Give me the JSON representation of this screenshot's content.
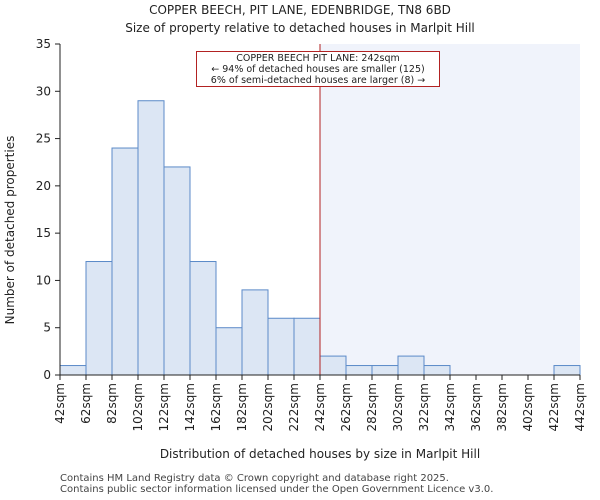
{
  "title_line1": "COPPER BEECH, PIT LANE, EDENBRIDGE, TN8 6BD",
  "title_line2": "Size of property relative to detached houses in Marlpit Hill",
  "footer_line1": "Contains HM Land Registry data © Crown copyright and database right 2025.",
  "footer_line2": "Contains public sector information licensed under the Open Government Licence v3.0.",
  "annotation": {
    "line1": "COPPER BEECH PIT LANE: 242sqm",
    "line2": "← 94% of detached houses are smaller (125)",
    "line3": "6% of semi-detached houses are larger (8) →"
  },
  "colors": {
    "bar_fill": "#dce6f4",
    "bar_stroke": "#5b8ac8",
    "highlight_region": "#f0f3fb",
    "marker_line": "#b22222"
  },
  "chart_data": {
    "type": "bar",
    "xlabel": "Distribution of detached houses by size in Marlpit Hill",
    "ylabel": "Number of detached properties",
    "ylim": [
      0,
      35
    ],
    "yticks": [
      0,
      5,
      10,
      15,
      20,
      25,
      30,
      35
    ],
    "bin_edges": [
      42,
      62,
      82,
      102,
      122,
      142,
      162,
      182,
      202,
      222,
      242,
      262,
      282,
      302,
      322,
      342,
      362,
      382,
      402,
      422,
      442
    ],
    "tick_labels": [
      "42sqm",
      "62sqm",
      "82sqm",
      "102sqm",
      "122sqm",
      "142sqm",
      "162sqm",
      "182sqm",
      "202sqm",
      "222sqm",
      "242sqm",
      "262sqm",
      "282sqm",
      "302sqm",
      "322sqm",
      "342sqm",
      "362sqm",
      "382sqm",
      "402sqm",
      "422sqm",
      "442sqm"
    ],
    "values": [
      1,
      12,
      24,
      29,
      22,
      12,
      5,
      9,
      6,
      6,
      2,
      1,
      1,
      2,
      1,
      0,
      0,
      0,
      0,
      1
    ],
    "marker_value": 242
  }
}
